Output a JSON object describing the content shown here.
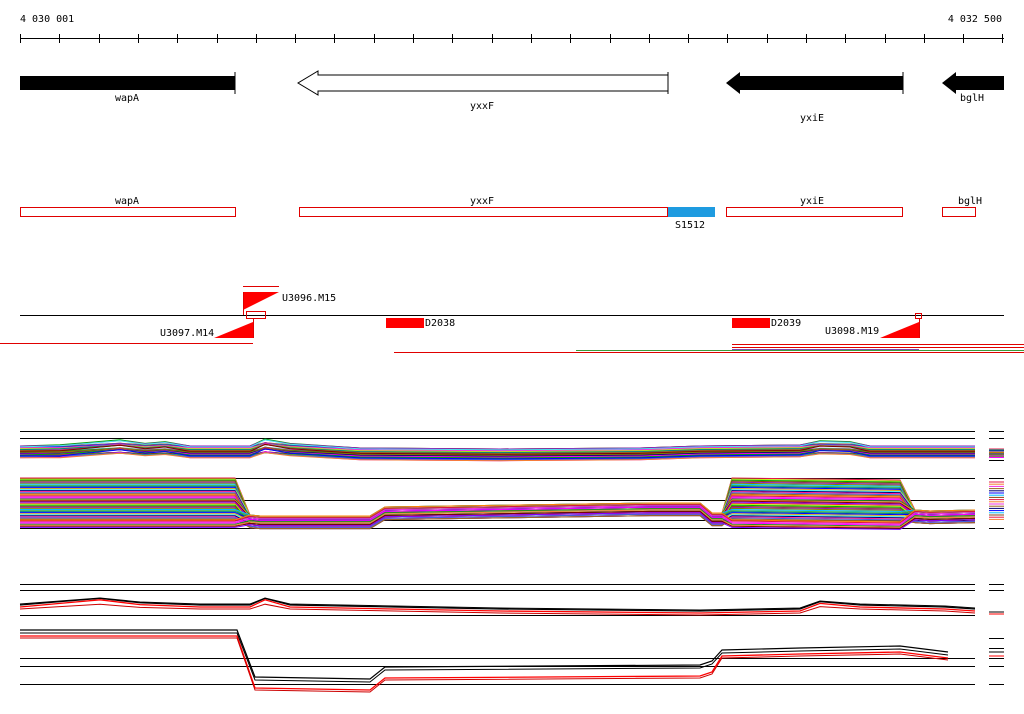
{
  "ruler": {
    "start_label": "4 030 001",
    "end_label": "4 032 500"
  },
  "genes": [
    {
      "name": "wapA",
      "strand": "plus"
    },
    {
      "name": "yxxF",
      "strand": "minus"
    },
    {
      "name": "yxiE",
      "strand": "minus"
    },
    {
      "name": "bglH",
      "strand": "minus"
    }
  ],
  "regions": [
    {
      "name": "wapA"
    },
    {
      "name": "yxxF"
    },
    {
      "name": "yxiE"
    },
    {
      "name": "bglH"
    }
  ],
  "segment": {
    "name": "S1512",
    "color": "#1e9be0"
  },
  "features": {
    "u3096": "U3096.M15",
    "u3097": "U3097.M14",
    "u3098": "U3098.M19",
    "d2038": "D2038",
    "d2039": "D2039"
  },
  "colors": {
    "feature": "#ff0000",
    "segment": "#1e9be0",
    "gene": "#000000"
  }
}
